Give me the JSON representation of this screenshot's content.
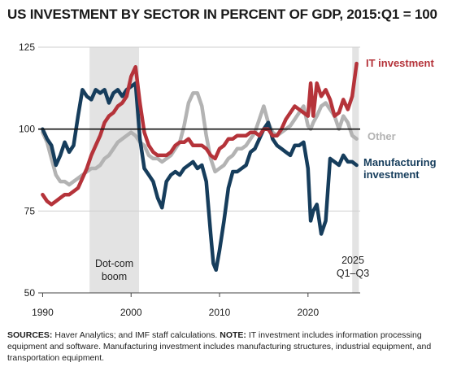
{
  "chart_data": {
    "type": "line",
    "title": "US INVESTMENT BY SECTOR IN PERCENT OF GDP, 2015:Q1 = 100",
    "xlim": [
      1989.5,
      2025.9
    ],
    "ylim": [
      50,
      125
    ],
    "yticks": [
      50,
      75,
      100,
      125
    ],
    "xticks": [
      1990,
      2000,
      2010,
      2020
    ],
    "grid": "horizontal",
    "reference_line": 100,
    "shaded_periods": [
      {
        "start": 1995.3,
        "end": 2000.9,
        "label_lines": [
          "Dot-com",
          "boom"
        ]
      },
      {
        "start": 2025.0,
        "end": 2025.75,
        "label_lines": [
          "2025",
          "Q1–Q3"
        ]
      }
    ],
    "series": [
      {
        "name": "Other",
        "label_lines": [
          "Other"
        ],
        "color": "#b3b3b3",
        "x": [
          1990,
          1990.5,
          1991,
          1991.5,
          1992,
          1992.5,
          1993,
          1993.5,
          1994,
          1994.5,
          1995,
          1995.5,
          1996,
          1996.5,
          1997,
          1997.5,
          1998,
          1998.5,
          1999,
          1999.5,
          2000,
          2000.5,
          2001,
          2001.5,
          2002,
          2002.5,
          2003,
          2003.5,
          2004,
          2004.5,
          2005,
          2005.5,
          2006,
          2006.5,
          2007,
          2007.5,
          2008,
          2008.5,
          2009,
          2009.5,
          2010,
          2010.5,
          2011,
          2011.5,
          2012,
          2012.5,
          2013,
          2013.5,
          2014,
          2014.5,
          2015,
          2015.5,
          2016,
          2016.5,
          2017,
          2017.5,
          2018,
          2018.5,
          2019,
          2019.5,
          2020,
          2020.3,
          2020.6,
          2021,
          2021.5,
          2022,
          2022.5,
          2023,
          2023.5,
          2024,
          2024.5,
          2025,
          2025.5
        ],
        "values": [
          99,
          96,
          91,
          86,
          84,
          84,
          83,
          84,
          85,
          86,
          87,
          88,
          88,
          89,
          91,
          92,
          94,
          96,
          97,
          98,
          99,
          98,
          96,
          95,
          92,
          91,
          91,
          90,
          91,
          92,
          94,
          96,
          101,
          108,
          111,
          111,
          107,
          98,
          91,
          87,
          88,
          89,
          91,
          92,
          94,
          94,
          95,
          97,
          99,
          103,
          107,
          102,
          99,
          98,
          99,
          100,
          101,
          103,
          105,
          107,
          101,
          100,
          102,
          104,
          107,
          108,
          106,
          104,
          100,
          104,
          102,
          98,
          97
        ]
      },
      {
        "name": "Manufacturing investment",
        "label_lines": [
          "Manufacturing",
          "investment"
        ],
        "color": "#163d5c",
        "x": [
          1990,
          1990.5,
          1991,
          1991.5,
          1992,
          1992.5,
          1993,
          1993.5,
          1994,
          1994.5,
          1995,
          1995.5,
          1996,
          1996.5,
          1997,
          1997.5,
          1998,
          1998.5,
          1999,
          1999.5,
          2000,
          2000.5,
          2001,
          2001.5,
          2002,
          2002.5,
          2003,
          2003.5,
          2004,
          2004.5,
          2005,
          2005.5,
          2006,
          2006.5,
          2007,
          2007.5,
          2008,
          2008.5,
          2009,
          2009.3,
          2009.6,
          2010,
          2010.5,
          2011,
          2011.5,
          2012,
          2012.5,
          2013,
          2013.5,
          2014,
          2014.5,
          2015,
          2015.5,
          2016,
          2016.5,
          2017,
          2017.5,
          2018,
          2018.5,
          2019,
          2019.5,
          2020,
          2020.3,
          2020.6,
          2021,
          2021.5,
          2022,
          2022.5,
          2023,
          2023.5,
          2024,
          2024.5,
          2025,
          2025.5
        ],
        "values": [
          100,
          97,
          95,
          89,
          92,
          96,
          93,
          95,
          104,
          112,
          110,
          109,
          112,
          111,
          112,
          108,
          111,
          112,
          110,
          112,
          113,
          114,
          97,
          88,
          86,
          84,
          79,
          76,
          84,
          86,
          87,
          86,
          88,
          89,
          90,
          88,
          89,
          84,
          68,
          59,
          57,
          63,
          72,
          82,
          87,
          87,
          88,
          89,
          93,
          94,
          97,
          100,
          102,
          97,
          95,
          94,
          93,
          92,
          95,
          95,
          96,
          88,
          72,
          75,
          77,
          68,
          72,
          91,
          90,
          89,
          92,
          90,
          90,
          89
        ]
      },
      {
        "name": "IT investment",
        "label_lines": [
          "IT investment"
        ],
        "color": "#b5333a",
        "x": [
          1990,
          1990.5,
          1991,
          1991.5,
          1992,
          1992.5,
          1993,
          1993.5,
          1994,
          1994.5,
          1995,
          1995.5,
          1996,
          1996.5,
          1997,
          1997.5,
          1998,
          1998.5,
          1999,
          1999.5,
          2000,
          2000.5,
          2001,
          2001.5,
          2002,
          2002.5,
          2003,
          2003.5,
          2004,
          2004.5,
          2005,
          2005.5,
          2006,
          2006.5,
          2007,
          2007.5,
          2008,
          2008.5,
          2009,
          2009.5,
          2010,
          2010.5,
          2011,
          2011.5,
          2012,
          2012.5,
          2013,
          2013.5,
          2014,
          2014.5,
          2015,
          2015.5,
          2016,
          2016.5,
          2017,
          2017.5,
          2018,
          2018.5,
          2019,
          2019.5,
          2020,
          2020.3,
          2020.6,
          2021,
          2021.5,
          2022,
          2022.5,
          2023,
          2023.5,
          2024,
          2024.5,
          2025,
          2025.5
        ],
        "values": [
          80,
          78,
          77,
          78,
          79,
          80,
          80,
          81,
          82,
          85,
          88,
          92,
          95,
          98,
          102,
          104,
          105,
          107,
          108,
          110,
          116,
          119,
          108,
          99,
          95,
          93,
          92,
          92,
          92,
          93,
          95,
          96,
          96,
          97,
          95,
          95,
          95,
          94,
          92,
          91,
          94,
          95,
          97,
          97,
          98,
          98,
          98,
          99,
          99,
          98,
          100,
          100,
          98,
          98,
          100,
          103,
          105,
          107,
          106,
          105,
          104,
          114,
          104,
          114,
          110,
          112,
          109,
          104,
          105,
          109,
          106,
          110,
          120
        ]
      }
    ]
  },
  "footnote": {
    "sources_label": "SOURCES:",
    "sources_text": " Haver Analytics; and IMF staff calculations. ",
    "note_label": "NOTE:",
    "note_text": " IT investment includes information processing equipment and software. Manufacturing investment includes manufacturing structures, industrial equipment, and transportation equipment."
  }
}
